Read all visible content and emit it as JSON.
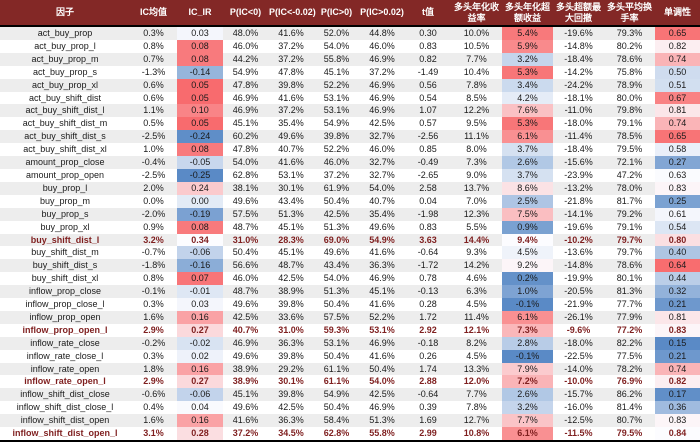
{
  "theme": {
    "header_bg": "#832826",
    "header_text": "#FFFFFF",
    "stripe_bg": "#EDEDED",
    "highlight_text": "#7F1F1F",
    "body_text": "#1A1A1A"
  },
  "chart_data": {
    "type": "table",
    "title": "",
    "columns": [
      "因子",
      "IC均值",
      "IC_IR",
      "P(IC<0)",
      "P(IC<-0.02)",
      "P(IC>0)",
      "P(IC>0.02)",
      "t值",
      "多头年化收益率",
      "多头年化超额收益",
      "多头超额最大回撤",
      "多头平均换手率",
      "单调性"
    ],
    "rows": [
      [
        "act_buy_prop",
        "0.3%",
        "0.03",
        "48.0%",
        "41.6%",
        "52.0%",
        "44.8%",
        "0.30",
        "10.0%",
        "5.4%",
        "-19.6%",
        "79.3%",
        "0.65"
      ],
      [
        "act_buy_prop_l",
        "0.8%",
        "0.08",
        "46.0%",
        "37.2%",
        "54.0%",
        "46.0%",
        "0.83",
        "10.5%",
        "5.9%",
        "-14.8%",
        "80.2%",
        "0.82"
      ],
      [
        "act_buy_prop_m",
        "0.7%",
        "0.08",
        "44.2%",
        "37.2%",
        "55.8%",
        "46.9%",
        "0.82",
        "7.7%",
        "3.2%",
        "-18.4%",
        "78.6%",
        "0.74"
      ],
      [
        "act_buy_prop_s",
        "-1.3%",
        "-0.14",
        "54.9%",
        "47.8%",
        "45.1%",
        "37.2%",
        "-1.49",
        "10.4%",
        "5.3%",
        "-14.2%",
        "75.8%",
        "0.50"
      ],
      [
        "act_buy_prop_xl",
        "0.6%",
        "0.05",
        "47.8%",
        "39.8%",
        "52.2%",
        "46.9%",
        "0.56",
        "7.8%",
        "3.4%",
        "-24.2%",
        "78.9%",
        "0.51"
      ],
      [
        "act_buy_shift_dist",
        "0.6%",
        "0.05",
        "46.9%",
        "41.6%",
        "53.1%",
        "46.9%",
        "0.54",
        "8.5%",
        "4.2%",
        "-18.1%",
        "80.0%",
        "0.67"
      ],
      [
        "act_buy_shift_dist_l",
        "1.1%",
        "0.10",
        "46.9%",
        "37.2%",
        "53.1%",
        "46.9%",
        "1.07",
        "12.2%",
        "7.6%",
        "-11.0%",
        "79.8%",
        "0.81"
      ],
      [
        "act_buy_shift_dist_m",
        "0.5%",
        "0.05",
        "45.1%",
        "35.4%",
        "54.9%",
        "42.5%",
        "0.57",
        "9.5%",
        "5.3%",
        "-18.0%",
        "79.1%",
        "0.74"
      ],
      [
        "act_buy_shift_dist_s",
        "-2.5%",
        "-0.24",
        "60.2%",
        "49.6%",
        "39.8%",
        "32.7%",
        "-2.56",
        "11.1%",
        "6.1%",
        "-11.4%",
        "78.5%",
        "0.65"
      ],
      [
        "act_buy_shift_dist_xl",
        "1.0%",
        "0.08",
        "47.8%",
        "40.7%",
        "52.2%",
        "46.0%",
        "0.85",
        "8.0%",
        "3.7%",
        "-18.4%",
        "79.5%",
        "0.58"
      ],
      [
        "amount_prop_close",
        "-0.4%",
        "-0.05",
        "54.0%",
        "41.6%",
        "46.0%",
        "32.7%",
        "-0.49",
        "7.3%",
        "2.6%",
        "-15.6%",
        "72.1%",
        "0.27"
      ],
      [
        "amount_prop_open",
        "-2.5%",
        "-0.25",
        "62.8%",
        "53.1%",
        "37.2%",
        "32.7%",
        "-2.65",
        "9.0%",
        "3.7%",
        "-23.9%",
        "47.2%",
        "0.63"
      ],
      [
        "buy_prop_l",
        "2.0%",
        "0.24",
        "38.1%",
        "30.1%",
        "61.9%",
        "54.0%",
        "2.58",
        "13.7%",
        "8.6%",
        "-13.2%",
        "78.0%",
        "0.83"
      ],
      [
        "buy_prop_m",
        "0.0%",
        "0.00",
        "49.6%",
        "43.4%",
        "50.4%",
        "40.7%",
        "0.04",
        "7.0%",
        "2.5%",
        "-21.8%",
        "81.7%",
        "0.25"
      ],
      [
        "buy_prop_s",
        "-2.0%",
        "-0.19",
        "57.5%",
        "51.3%",
        "42.5%",
        "35.4%",
        "-1.98",
        "12.3%",
        "7.5%",
        "-14.1%",
        "79.2%",
        "0.61"
      ],
      [
        "buy_prop_xl",
        "0.9%",
        "0.08",
        "48.7%",
        "45.1%",
        "51.3%",
        "49.6%",
        "0.83",
        "5.5%",
        "0.9%",
        "-19.6%",
        "79.1%",
        "0.54"
      ],
      [
        "buy_shift_dist_l",
        "3.2%",
        "0.34",
        "31.0%",
        "28.3%",
        "69.0%",
        "54.9%",
        "3.63",
        "14.4%",
        "9.4%",
        "-10.2%",
        "79.7%",
        "0.80"
      ],
      [
        "buy_shift_dist_m",
        "-0.7%",
        "-0.06",
        "50.4%",
        "45.1%",
        "49.6%",
        "41.6%",
        "-0.64",
        "9.3%",
        "4.5%",
        "-13.6%",
        "79.7%",
        "0.40"
      ],
      [
        "buy_shift_dist_s",
        "-1.8%",
        "-0.16",
        "56.6%",
        "48.7%",
        "43.4%",
        "36.3%",
        "-1.72",
        "14.2%",
        "9.2%",
        "-14.8%",
        "78.6%",
        "0.64"
      ],
      [
        "buy_shift_dist_xl",
        "0.8%",
        "0.07",
        "46.0%",
        "42.5%",
        "54.0%",
        "46.9%",
        "0.78",
        "4.6%",
        "0.2%",
        "-19.9%",
        "80.1%",
        "0.44"
      ],
      [
        "inflow_prop_close",
        "-0.1%",
        "-0.01",
        "48.7%",
        "38.9%",
        "51.3%",
        "45.1%",
        "-0.13",
        "6.3%",
        "1.0%",
        "-20.5%",
        "81.3%",
        "0.32"
      ],
      [
        "inflow_prop_close_l",
        "0.3%",
        "0.03",
        "49.6%",
        "39.8%",
        "50.4%",
        "41.6%",
        "0.28",
        "4.5%",
        "-0.1%",
        "-21.9%",
        "77.7%",
        "0.21"
      ],
      [
        "inflow_prop_open",
        "1.6%",
        "0.16",
        "42.5%",
        "33.6%",
        "57.5%",
        "52.2%",
        "1.72",
        "11.4%",
        "6.1%",
        "-26.1%",
        "77.9%",
        "0.81"
      ],
      [
        "inflow_prop_open_l",
        "2.9%",
        "0.27",
        "40.7%",
        "31.0%",
        "59.3%",
        "53.1%",
        "2.92",
        "12.1%",
        "7.3%",
        "-9.6%",
        "77.2%",
        "0.83"
      ],
      [
        "inflow_rate_close",
        "-0.2%",
        "-0.02",
        "46.9%",
        "36.3%",
        "53.1%",
        "46.9%",
        "-0.18",
        "8.2%",
        "2.8%",
        "-18.0%",
        "82.2%",
        "0.15"
      ],
      [
        "inflow_rate_close_l",
        "0.3%",
        "0.02",
        "49.6%",
        "39.8%",
        "50.4%",
        "41.6%",
        "0.26",
        "4.5%",
        "-0.1%",
        "-22.5%",
        "77.5%",
        "0.21"
      ],
      [
        "inflow_rate_open",
        "1.8%",
        "0.16",
        "38.9%",
        "29.2%",
        "61.1%",
        "50.4%",
        "1.74",
        "13.3%",
        "7.9%",
        "-14.0%",
        "78.2%",
        "0.74"
      ],
      [
        "inflow_rate_open_l",
        "2.9%",
        "0.27",
        "38.9%",
        "30.1%",
        "61.1%",
        "54.0%",
        "2.88",
        "12.0%",
        "7.2%",
        "-10.0%",
        "76.9%",
        "0.82"
      ],
      [
        "inflow_shift_dist_close",
        "-0.6%",
        "-0.06",
        "45.1%",
        "39.8%",
        "54.9%",
        "42.5%",
        "-0.64",
        "7.7%",
        "2.6%",
        "-15.7%",
        "86.2%",
        "0.17"
      ],
      [
        "inflow_shift_dist_close_l",
        "0.4%",
        "0.04",
        "49.6%",
        "42.5%",
        "50.4%",
        "46.9%",
        "0.39",
        "7.8%",
        "3.2%",
        "-16.0%",
        "81.4%",
        "0.36"
      ],
      [
        "inflow_shift_dist_open",
        "1.6%",
        "0.16",
        "41.6%",
        "36.3%",
        "58.4%",
        "51.3%",
        "1.69",
        "12.7%",
        "7.7%",
        "-12.5%",
        "80.7%",
        "0.83"
      ],
      [
        "inflow_shift_dist_open_l",
        "3.1%",
        "0.28",
        "37.2%",
        "34.5%",
        "62.8%",
        "55.8%",
        "2.99",
        "10.8%",
        "6.1%",
        "-11.5%",
        "79.5%",
        "0.84"
      ]
    ],
    "highlight_rows": [
      16,
      23,
      27,
      31
    ],
    "color_scales": {
      "2": {
        "min": -0.25,
        "mid": 0.045,
        "max": 0.34
      },
      "9": {
        "min": -0.1,
        "mid": 4.9,
        "max": 9.4
      },
      "12": {
        "min": 0.15,
        "mid": 0.635,
        "max": 0.84
      }
    },
    "scale_colors": {
      "low": "#5A8AC6",
      "mid": "#FCFCFF",
      "high": "#F8696B"
    },
    "layout": {
      "striped": true,
      "grid": false
    }
  }
}
